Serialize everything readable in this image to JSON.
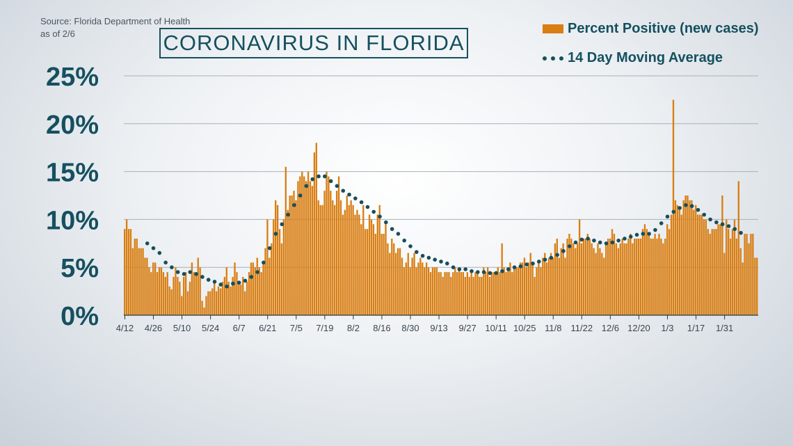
{
  "header": {
    "source_line1": "Source: Florida Department of Health",
    "source_line2": "as of 2/6",
    "title": "CORONAVIRUS IN FLORIDA"
  },
  "legend": {
    "bar_label": "Percent Positive (new cases)",
    "line_label": "14 Day Moving Average"
  },
  "colors": {
    "bar": "#d97e12",
    "dots": "#174e5c",
    "title": "#15505f",
    "grid": "#a8b0b8",
    "text": "#15505f"
  },
  "chart_data": {
    "type": "bar",
    "title": "CORONAVIRUS IN FLORIDA",
    "start_date": "4/12",
    "y_ticks": [
      "0%",
      "5%",
      "10%",
      "15%",
      "20%",
      "25%"
    ],
    "ylim": [
      0,
      25
    ],
    "x_ticks": [
      {
        "day": 0,
        "label": "4/12"
      },
      {
        "day": 14,
        "label": "4/26"
      },
      {
        "day": 28,
        "label": "5/10"
      },
      {
        "day": 42,
        "label": "5/24"
      },
      {
        "day": 56,
        "label": "6/7"
      },
      {
        "day": 70,
        "label": "6/21"
      },
      {
        "day": 84,
        "label": "7/5"
      },
      {
        "day": 98,
        "label": "7/19"
      },
      {
        "day": 112,
        "label": "8/2"
      },
      {
        "day": 126,
        "label": "8/16"
      },
      {
        "day": 140,
        "label": "8/30"
      },
      {
        "day": 154,
        "label": "9/13"
      },
      {
        "day": 168,
        "label": "9/27"
      },
      {
        "day": 182,
        "label": "10/11"
      },
      {
        "day": 196,
        "label": "10/25"
      },
      {
        "day": 210,
        "label": "11/8"
      },
      {
        "day": 224,
        "label": "11/22"
      },
      {
        "day": 238,
        "label": "12/6"
      },
      {
        "day": 252,
        "label": "12/20"
      },
      {
        "day": 266,
        "label": "1/3"
      },
      {
        "day": 280,
        "label": "1/17"
      },
      {
        "day": 294,
        "label": "1/31"
      }
    ],
    "series": [
      {
        "name": "Percent Positive (new cases)",
        "type": "bar",
        "values": [
          9.0,
          10.0,
          9.0,
          9.0,
          7.0,
          8.0,
          8.0,
          7.0,
          7.0,
          7.0,
          6.0,
          6.0,
          5.0,
          4.5,
          5.5,
          5.5,
          4.5,
          5.0,
          5.0,
          4.5,
          4.0,
          4.5,
          3.0,
          2.7,
          4.0,
          5.0,
          4.0,
          3.5,
          2.0,
          4.0,
          4.5,
          2.5,
          3.5,
          5.5,
          4.5,
          4.5,
          6.0,
          5.0,
          1.5,
          0.8,
          2.0,
          2.5,
          2.5,
          2.8,
          3.5,
          2.5,
          3.0,
          2.8,
          3.5,
          4.0,
          5.0,
          3.5,
          3.0,
          4.0,
          5.5,
          4.5,
          3.5,
          3.2,
          4.0,
          2.5,
          3.5,
          4.5,
          5.5,
          5.5,
          5.0,
          6.0,
          5.0,
          4.5,
          5.5,
          7.0,
          10.0,
          6.0,
          7.5,
          10.0,
          12.0,
          11.5,
          9.0,
          7.5,
          10.0,
          15.5,
          11.0,
          12.5,
          12.5,
          13.0,
          12.0,
          14.0,
          14.5,
          15.0,
          14.5,
          14.0,
          15.0,
          14.0,
          13.5,
          17.0,
          18.0,
          12.0,
          11.5,
          11.5,
          13.0,
          15.0,
          14.5,
          13.0,
          12.0,
          11.5,
          13.0,
          14.5,
          12.0,
          10.5,
          11.0,
          12.5,
          11.5,
          12.0,
          11.5,
          10.5,
          11.0,
          10.5,
          9.5,
          11.5,
          9.0,
          9.0,
          10.5,
          10.0,
          9.5,
          8.5,
          10.5,
          11.5,
          8.5,
          8.5,
          9.5,
          7.5,
          6.5,
          8.0,
          7.5,
          6.5,
          7.0,
          7.0,
          6.0,
          5.0,
          5.5,
          6.5,
          5.0,
          6.0,
          6.5,
          5.0,
          5.5,
          6.0,
          5.5,
          5.0,
          5.5,
          5.0,
          4.5,
          5.0,
          5.0,
          5.0,
          4.5,
          4.5,
          4.0,
          4.5,
          4.5,
          4.5,
          4.0,
          4.5,
          5.0,
          4.5,
          5.0,
          4.5,
          4.5,
          4.0,
          4.5,
          4.0,
          4.5,
          4.0,
          4.5,
          4.5,
          4.0,
          4.0,
          5.0,
          4.5,
          5.0,
          4.0,
          4.5,
          4.5,
          4.5,
          5.0,
          4.5,
          7.5,
          5.0,
          4.5,
          5.0,
          5.5,
          4.5,
          5.0,
          5.0,
          5.0,
          5.5,
          5.5,
          6.0,
          5.0,
          5.5,
          6.5,
          5.5,
          4.0,
          5.0,
          5.5,
          5.0,
          6.0,
          6.5,
          5.5,
          6.0,
          6.5,
          6.0,
          7.5,
          8.0,
          6.0,
          7.0,
          7.5,
          6.0,
          8.0,
          8.5,
          8.0,
          7.5,
          7.0,
          7.5,
          10.0,
          7.5,
          8.0,
          8.0,
          8.5,
          8.0,
          7.5,
          7.0,
          6.5,
          7.5,
          7.0,
          6.5,
          6.0,
          7.5,
          8.0,
          8.0,
          9.0,
          8.5,
          7.5,
          7.0,
          7.5,
          8.0,
          7.5,
          7.5,
          8.0,
          8.5,
          7.5,
          8.0,
          8.0,
          8.0,
          8.0,
          9.0,
          9.5,
          9.0,
          8.5,
          8.0,
          8.0,
          8.5,
          8.0,
          8.5,
          8.0,
          7.5,
          8.0,
          9.5,
          9.0,
          10.5,
          22.5,
          12.0,
          11.5,
          11.0,
          10.5,
          12.0,
          12.5,
          12.5,
          12.0,
          12.0,
          11.0,
          11.5,
          10.5,
          10.5,
          10.5,
          10.0,
          10.0,
          9.0,
          8.5,
          9.0,
          9.0,
          9.0,
          9.5,
          9.5,
          12.5,
          6.5,
          10.0,
          9.0,
          8.0,
          9.0,
          10.0,
          8.0,
          14.0,
          7.0,
          5.5,
          8.5,
          8.5,
          7.5,
          8.5,
          8.5,
          6.0,
          6.0
        ]
      },
      {
        "name": "14 Day Moving Average",
        "type": "scatter",
        "points": [
          {
            "day": 11,
            "value": 7.5
          },
          {
            "day": 14,
            "value": 7.0
          },
          {
            "day": 17,
            "value": 6.5
          },
          {
            "day": 20,
            "value": 5.5
          },
          {
            "day": 23,
            "value": 5.0
          },
          {
            "day": 26,
            "value": 4.5
          },
          {
            "day": 29,
            "value": 4.3
          },
          {
            "day": 32,
            "value": 4.5
          },
          {
            "day": 35,
            "value": 4.3
          },
          {
            "day": 38,
            "value": 4.0
          },
          {
            "day": 41,
            "value": 3.7
          },
          {
            "day": 44,
            "value": 3.5
          },
          {
            "day": 47,
            "value": 3.2
          },
          {
            "day": 50,
            "value": 3.0
          },
          {
            "day": 53,
            "value": 3.3
          },
          {
            "day": 56,
            "value": 3.4
          },
          {
            "day": 59,
            "value": 3.6
          },
          {
            "day": 62,
            "value": 4.0
          },
          {
            "day": 65,
            "value": 4.5
          },
          {
            "day": 68,
            "value": 5.5
          },
          {
            "day": 71,
            "value": 7.0
          },
          {
            "day": 74,
            "value": 8.5
          },
          {
            "day": 77,
            "value": 9.5
          },
          {
            "day": 80,
            "value": 10.5
          },
          {
            "day": 83,
            "value": 11.5
          },
          {
            "day": 86,
            "value": 12.5
          },
          {
            "day": 89,
            "value": 13.5
          },
          {
            "day": 92,
            "value": 14.2
          },
          {
            "day": 95,
            "value": 14.5
          },
          {
            "day": 98,
            "value": 14.5
          },
          {
            "day": 101,
            "value": 14.0
          },
          {
            "day": 104,
            "value": 13.5
          },
          {
            "day": 107,
            "value": 13.0
          },
          {
            "day": 110,
            "value": 12.6
          },
          {
            "day": 113,
            "value": 12.2
          },
          {
            "day": 116,
            "value": 11.8
          },
          {
            "day": 119,
            "value": 11.3
          },
          {
            "day": 122,
            "value": 10.8
          },
          {
            "day": 125,
            "value": 10.3
          },
          {
            "day": 128,
            "value": 9.7
          },
          {
            "day": 131,
            "value": 9.0
          },
          {
            "day": 134,
            "value": 8.5
          },
          {
            "day": 137,
            "value": 7.8
          },
          {
            "day": 140,
            "value": 7.2
          },
          {
            "day": 143,
            "value": 6.6
          },
          {
            "day": 146,
            "value": 6.2
          },
          {
            "day": 149,
            "value": 6.0
          },
          {
            "day": 152,
            "value": 5.8
          },
          {
            "day": 155,
            "value": 5.6
          },
          {
            "day": 158,
            "value": 5.4
          },
          {
            "day": 161,
            "value": 5.0
          },
          {
            "day": 164,
            "value": 4.8
          },
          {
            "day": 167,
            "value": 4.8
          },
          {
            "day": 170,
            "value": 4.6
          },
          {
            "day": 173,
            "value": 4.5
          },
          {
            "day": 176,
            "value": 4.5
          },
          {
            "day": 179,
            "value": 4.4
          },
          {
            "day": 182,
            "value": 4.4
          },
          {
            "day": 185,
            "value": 4.6
          },
          {
            "day": 188,
            "value": 4.8
          },
          {
            "day": 191,
            "value": 5.0
          },
          {
            "day": 194,
            "value": 5.1
          },
          {
            "day": 197,
            "value": 5.3
          },
          {
            "day": 200,
            "value": 5.4
          },
          {
            "day": 203,
            "value": 5.6
          },
          {
            "day": 206,
            "value": 5.8
          },
          {
            "day": 209,
            "value": 6.0
          },
          {
            "day": 212,
            "value": 6.3
          },
          {
            "day": 215,
            "value": 6.7
          },
          {
            "day": 218,
            "value": 7.2
          },
          {
            "day": 221,
            "value": 7.6
          },
          {
            "day": 224,
            "value": 7.9
          },
          {
            "day": 227,
            "value": 8.0
          },
          {
            "day": 230,
            "value": 7.8
          },
          {
            "day": 233,
            "value": 7.6
          },
          {
            "day": 236,
            "value": 7.5
          },
          {
            "day": 239,
            "value": 7.6
          },
          {
            "day": 242,
            "value": 7.8
          },
          {
            "day": 245,
            "value": 8.0
          },
          {
            "day": 248,
            "value": 8.2
          },
          {
            "day": 251,
            "value": 8.4
          },
          {
            "day": 254,
            "value": 8.5
          },
          {
            "day": 257,
            "value": 8.5
          },
          {
            "day": 260,
            "value": 8.9
          },
          {
            "day": 263,
            "value": 9.6
          },
          {
            "day": 266,
            "value": 10.3
          },
          {
            "day": 269,
            "value": 10.8
          },
          {
            "day": 272,
            "value": 11.2
          },
          {
            "day": 275,
            "value": 11.5
          },
          {
            "day": 278,
            "value": 11.4
          },
          {
            "day": 281,
            "value": 11.0
          },
          {
            "day": 284,
            "value": 10.5
          },
          {
            "day": 287,
            "value": 10.0
          },
          {
            "day": 290,
            "value": 9.7
          },
          {
            "day": 293,
            "value": 9.5
          },
          {
            "day": 296,
            "value": 9.3
          },
          {
            "day": 299,
            "value": 9.0
          },
          {
            "day": 302,
            "value": 8.6
          }
        ]
      }
    ]
  }
}
